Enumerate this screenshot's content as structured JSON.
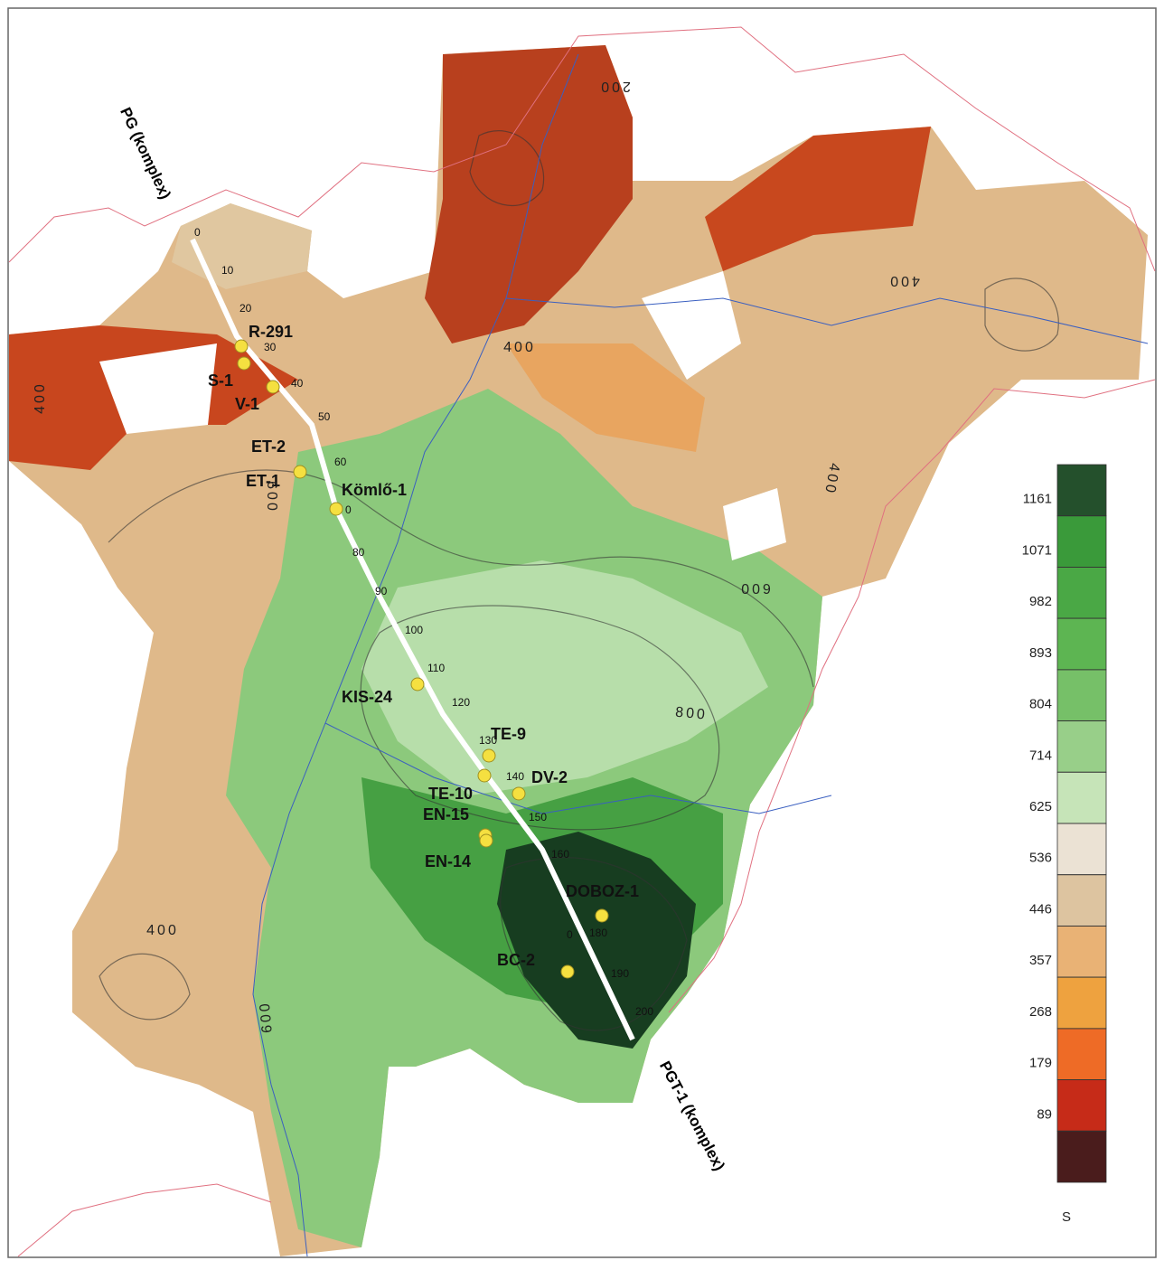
{
  "profiles": [
    {
      "label": "PG (komplex)"
    },
    {
      "label": "PGT-1 (komplex)"
    }
  ],
  "wells": [
    {
      "label": "R-291"
    },
    {
      "label": "S-1"
    },
    {
      "label": "V-1"
    },
    {
      "label": "ET-2"
    },
    {
      "label": "ET-1"
    },
    {
      "label": "Kömlő-1"
    },
    {
      "label": "KIS-24"
    },
    {
      "label": "TE-9"
    },
    {
      "label": "TE-10"
    },
    {
      "label": "DV-2"
    },
    {
      "label": "EN-15"
    },
    {
      "label": "EN-14"
    },
    {
      "label": "DOBOZ-1"
    },
    {
      "label": "BC-2"
    }
  ],
  "km_marks": [
    "0",
    "10",
    "20",
    "30",
    "40",
    "50",
    "60",
    "0",
    "80",
    "90",
    "100",
    "110",
    "120",
    "130",
    "140",
    "150",
    "160",
    "0",
    "180",
    "190",
    "200"
  ],
  "contour_labels": [
    "200",
    "400",
    "400",
    "400",
    "400",
    "600",
    "600",
    "800",
    "400",
    "600"
  ],
  "legend": {
    "ticks": [
      1161,
      1071,
      982,
      893,
      804,
      714,
      625,
      536,
      446,
      357,
      268,
      179,
      89
    ],
    "colors": [
      "#24502c",
      "#3a9a3a",
      "#4aa845",
      "#5db552",
      "#76c068",
      "#98cf89",
      "#c6e4b8",
      "#ebe2d4",
      "#ddc4a0",
      "#e9b275",
      "#eea23f",
      "#ee6b26",
      "#c62b18",
      "#4a1c1c"
    ],
    "unit": "S"
  }
}
